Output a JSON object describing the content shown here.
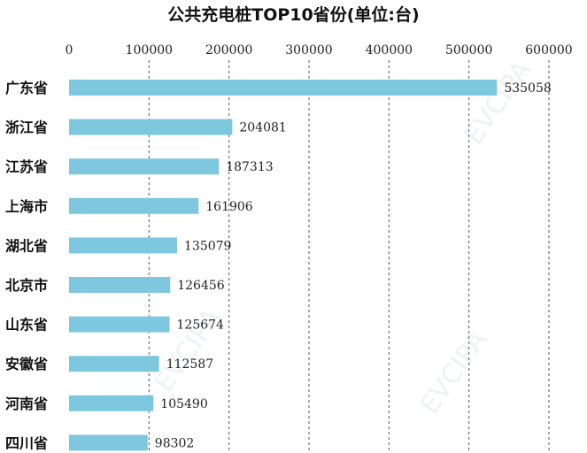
{
  "chart_data": {
    "type": "bar",
    "orientation": "horizontal",
    "title": "公共充电桩TOP10省份(单位:台)",
    "categories": [
      "广东省",
      "浙江省",
      "江苏省",
      "上海市",
      "湖北省",
      "北京市",
      "山东省",
      "安徽省",
      "河南省",
      "四川省"
    ],
    "values": [
      535058,
      204081,
      187313,
      161906,
      135079,
      126456,
      125674,
      112587,
      105490,
      98302
    ],
    "xlim": [
      0,
      600000
    ],
    "x_ticks": [
      "0",
      "100000",
      "200000",
      "300000",
      "400000",
      "500000",
      "600000"
    ],
    "xaxis_position": "top",
    "grid": "vertical-dashed",
    "bar_color": "#7ec8df",
    "watermark": "EVCIPA"
  }
}
